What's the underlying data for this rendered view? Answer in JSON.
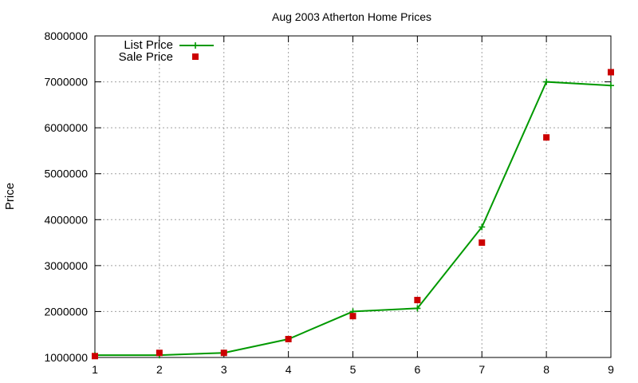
{
  "chart_data": {
    "type": "line",
    "title": "Aug 2003 Atherton Home Prices",
    "xlabel": "",
    "ylabel": "Price",
    "xlim": [
      1,
      9
    ],
    "ylim": [
      1000000,
      8000000
    ],
    "x_ticks": [
      "1",
      "2",
      "3",
      "4",
      "5",
      "6",
      "7",
      "8",
      "9"
    ],
    "y_ticks": [
      "1000000",
      "2000000",
      "3000000",
      "4000000",
      "5000000",
      "6000000",
      "7000000",
      "8000000"
    ],
    "grid": true,
    "legend_position": "top-left",
    "series": [
      {
        "name": "List Price",
        "style": "linespoints",
        "marker": "plus",
        "color": "#009900",
        "x": [
          1,
          2,
          3,
          4,
          5,
          6,
          7,
          8,
          9
        ],
        "values": [
          1050000,
          1050000,
          1100000,
          1400000,
          2000000,
          2070000,
          3840000,
          7000000,
          6920000
        ]
      },
      {
        "name": "Sale Price",
        "style": "points",
        "marker": "square",
        "color": "#cc0000",
        "x": [
          1,
          2,
          3,
          4,
          5,
          6,
          7,
          8,
          9
        ],
        "values": [
          1030000,
          1100000,
          1100000,
          1400000,
          1900000,
          2250000,
          3500000,
          5790000,
          7210000
        ]
      }
    ]
  }
}
